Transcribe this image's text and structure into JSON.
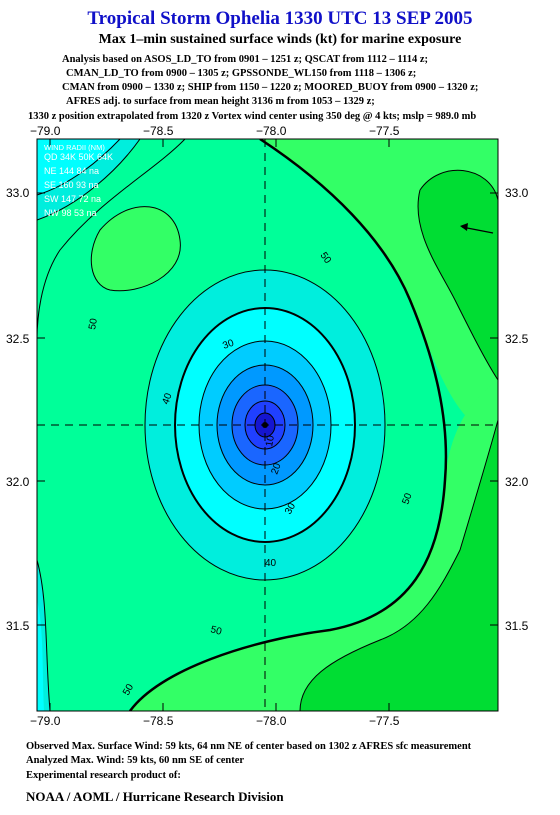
{
  "title": "Tropical Storm Ophelia 1330 UTC 13 SEP 2005",
  "subtitle": "Max 1–min sustained surface winds (kt) for marine exposure",
  "analysis_lines": [
    "Analysis based on  ASOS_LD_TO from 0901 – 1251 z;  QSCAT from 1112 – 1114 z;",
    "CMAN_LD_TO from 0900 – 1305 z;  GPSSONDE_WL150 from 1118 – 1306 z;",
    "CMAN from 0900 – 1330 z;  SHIP from 1150 – 1220 z;  MOORED_BUOY from 0900 – 1320 z;",
    "AFRES adj. to surface from mean height 3136 m from 1053 – 1329 z;",
    "1330 z position extrapolated from 1320 z Vortex wind center using 350 deg @ 4 kts; mslp = 989.0 mb"
  ],
  "map": {
    "lon_range": [
      -79.1,
      -77.05
    ],
    "lat_range": [
      31.15,
      33.45
    ],
    "lon_ticks": [
      "−79.0",
      "−78.5",
      "−78.0",
      "−77.5"
    ],
    "lat_ticks": [
      "33.0",
      "32.5",
      "32.0",
      "31.5"
    ],
    "center_lon": -78.05,
    "center_lat": 32.2,
    "contour_labels": [
      "10",
      "20",
      "30",
      "40",
      "50",
      "50",
      "50",
      "50",
      "50",
      "40",
      "30"
    ],
    "colors": {
      "lt30": "#00ffff",
      "30_40": "#00eedd",
      "40_50": "#00ff99",
      "50_64": "#33ff66",
      "64plus": "#00dd33",
      "core_blue_1": "#00ccff",
      "core_blue_2": "#0099ff",
      "core_blue_3": "#1a66ff",
      "core_blue_4": "#2040ff",
      "core_blue_5": "#1515d0"
    }
  },
  "wind_radii": {
    "header": "WIND RADII (NM)",
    "columns": "QD 34K 50K 64K",
    "rows": [
      "NE 144  84  na",
      "SE 160  93  na",
      "SW 147  72  na",
      "NW  98  53  na"
    ]
  },
  "footer": {
    "observed": "Observed Max. Surface Wind: 59 kts, 64 nm NE of center based on 1302 z AFRES sfc measurement",
    "analyzed": "Analyzed Max. Wind: 59 kts, 60 nm SE of center",
    "experimental": "Experimental research product of:",
    "org": "NOAA / AOML / Hurricane Research Division"
  }
}
